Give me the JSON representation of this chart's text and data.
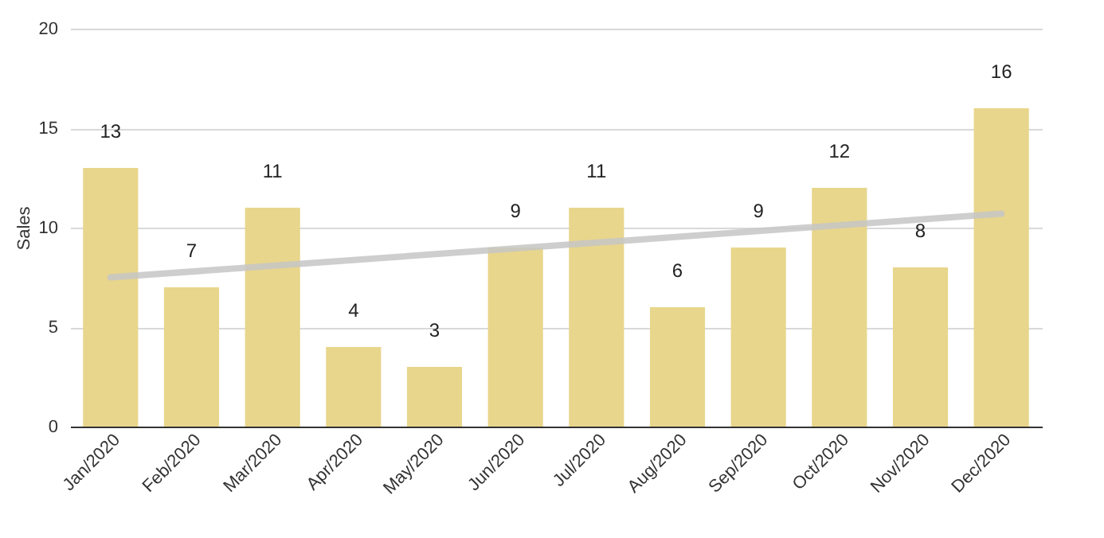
{
  "chart_data": {
    "type": "bar",
    "ylabel": "Sales",
    "categories": [
      "Jan/2020",
      "Feb/2020",
      "Mar/2020",
      "Apr/2020",
      "May/2020",
      "Jun/2020",
      "Jul/2020",
      "Aug/2020",
      "Sep/2020",
      "Oct/2020",
      "Nov/2020",
      "Dec/2020"
    ],
    "series": [
      {
        "color": "#e8d68c",
        "values": [
          13,
          7,
          11,
          4,
          3,
          9,
          11,
          6,
          9,
          12,
          8,
          16
        ],
        "value_labels": [
          "13",
          "7",
          "11",
          "4",
          "3",
          "9",
          "11",
          "6",
          "9",
          "12",
          "8",
          "16"
        ]
      },
      {
        "type": "line",
        "color": "#c6c6c6",
        "x": [
          "Jan/2020",
          "Dec/2020"
        ],
        "values": [
          7.5,
          10.7
        ]
      }
    ],
    "ylim": [
      0,
      20
    ],
    "yticks": [
      0,
      5,
      10,
      15,
      20
    ],
    "grid": "y"
  }
}
